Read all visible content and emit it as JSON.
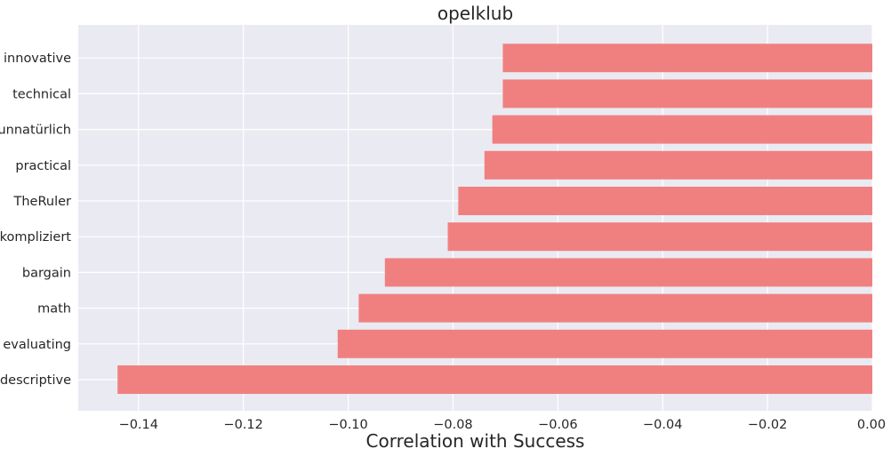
{
  "chart_data": {
    "type": "bar",
    "orientation": "horizontal",
    "title": "opelklub",
    "xlabel": "Correlation with Success",
    "ylabel": "",
    "categories": [
      "descriptive",
      "evaluating",
      "math",
      "bargain",
      "kompliziert",
      "TheRuler",
      "practical",
      "unnatürlich",
      "technical",
      "innovative"
    ],
    "values": [
      -0.144,
      -0.102,
      -0.098,
      -0.093,
      -0.081,
      -0.079,
      -0.074,
      -0.0725,
      -0.0705,
      -0.0705
    ],
    "xlim": [
      -0.1515,
      0.0
    ],
    "xticks": [
      -0.14,
      -0.12,
      -0.1,
      -0.08,
      -0.06,
      -0.04,
      -0.02,
      0.0
    ],
    "xtick_labels": [
      "−0.14",
      "−0.12",
      "−0.10",
      "−0.08",
      "−0.06",
      "−0.04",
      "−0.02",
      "0.00"
    ],
    "grid": true,
    "colors": {
      "bar": "#f08080",
      "plot_background": "#eaeaf2",
      "grid": "#ffffff",
      "text": "#262626"
    }
  }
}
